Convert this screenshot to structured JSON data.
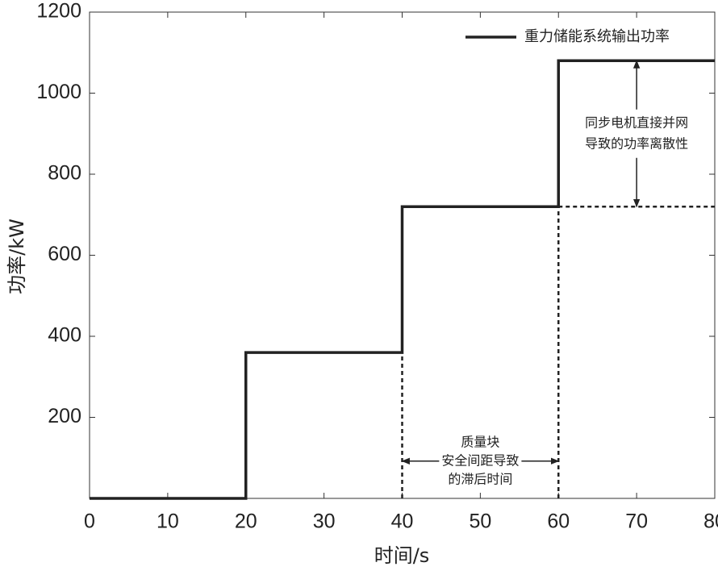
{
  "chart_data": {
    "type": "line",
    "xlabel": "时间/s",
    "ylabel": "功率/kW",
    "xlim": [
      0,
      80
    ],
    "ylim": [
      0,
      1200
    ],
    "xticks": [
      0,
      10,
      20,
      30,
      40,
      50,
      60,
      70,
      80
    ],
    "yticks": [
      200,
      400,
      600,
      800,
      1000,
      1200
    ],
    "legend": "upper right",
    "series": [
      {
        "name": "重力储能系统输出功率",
        "color": "#222222",
        "x": [
          0,
          20,
          20,
          40,
          40,
          60,
          60,
          80
        ],
        "values": [
          0,
          0,
          360,
          360,
          720,
          720,
          1080,
          1080
        ]
      }
    ],
    "reference_lines": [
      {
        "x": [
          40,
          40
        ],
        "values": [
          0,
          360
        ]
      },
      {
        "x": [
          60,
          60
        ],
        "values": [
          0,
          720
        ]
      },
      {
        "x": [
          60,
          80
        ],
        "values": [
          720,
          720
        ]
      }
    ],
    "annotations": [
      {
        "text": [
          "质量块",
          "安全间距导致",
          "的滞后时间"
        ],
        "arrow": {
          "x": [
            40,
            60
          ],
          "y": [
            92,
            92
          ]
        }
      },
      {
        "text": [
          "同步电机直接并网",
          "导致的功率离散性"
        ],
        "arrow": {
          "x": [
            70,
            70
          ],
          "y": [
            1080,
            720
          ]
        }
      }
    ]
  }
}
